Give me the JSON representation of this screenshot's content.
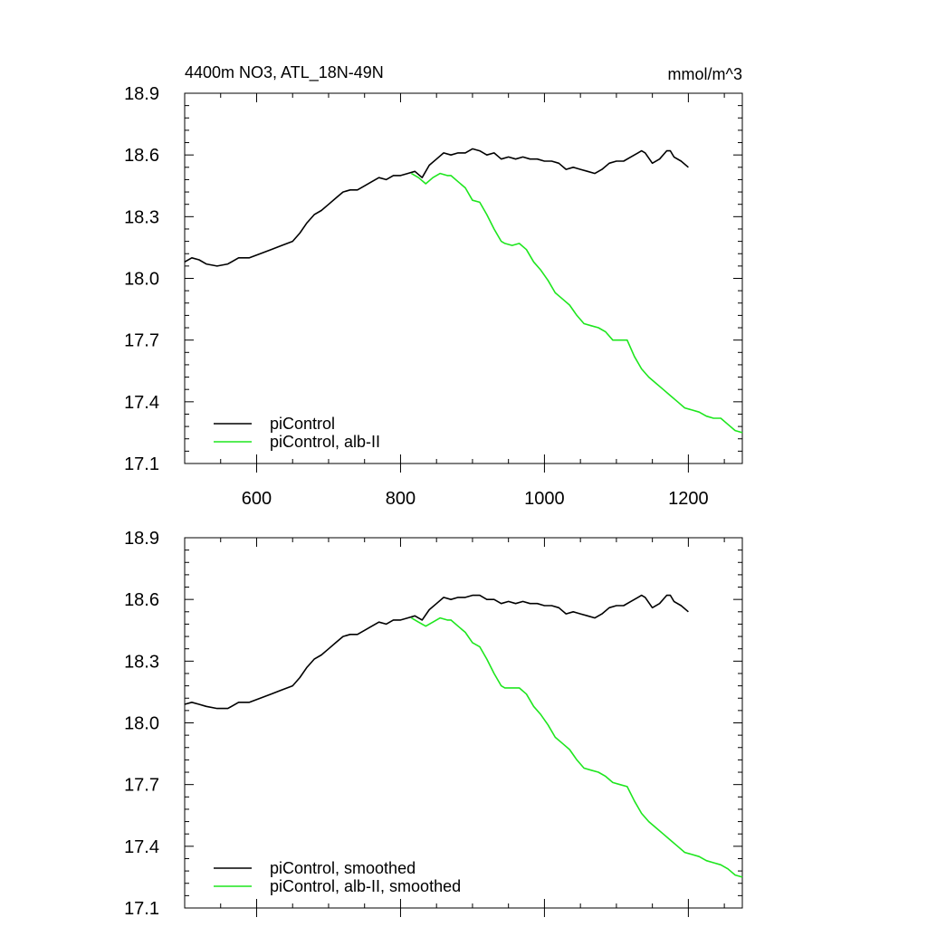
{
  "title": "4400m NO3, ATL_18N-49N",
  "units": "mmol/m^3",
  "colors": {
    "control": "#000000",
    "experiment": "#1ee61e"
  },
  "chart_data": [
    {
      "type": "line",
      "xlim": [
        500,
        1275
      ],
      "ylim": [
        17.1,
        18.9
      ],
      "xticks": [
        600,
        800,
        1000,
        1200
      ],
      "yticks": [
        17.1,
        17.4,
        17.7,
        18.0,
        18.3,
        18.6,
        18.9
      ],
      "ytick_labels": [
        "17.1",
        "17.4",
        "17.7",
        "18.0",
        "18.3",
        "18.6",
        "18.9"
      ],
      "xtick_labels": [
        "600",
        "800",
        "1000",
        "1200"
      ],
      "legend": [
        "piControl",
        "piControl, alb-II"
      ],
      "series": [
        {
          "name": "piControl",
          "x": [
            500,
            510,
            520,
            530,
            545,
            560,
            575,
            590,
            605,
            620,
            635,
            650,
            660,
            670,
            680,
            690,
            700,
            710,
            720,
            730,
            740,
            750,
            760,
            770,
            780,
            790,
            800,
            810,
            820,
            830,
            840,
            850,
            860,
            870,
            880,
            890,
            900,
            910,
            920,
            930,
            940,
            950,
            960,
            970,
            980,
            990,
            1000,
            1010,
            1020,
            1030,
            1040,
            1050,
            1060,
            1070,
            1080,
            1090,
            1100,
            1110,
            1120,
            1130,
            1135,
            1140,
            1150,
            1160,
            1170,
            1175,
            1180,
            1190,
            1200
          ],
          "values": [
            18.08,
            18.1,
            18.09,
            18.07,
            18.06,
            18.07,
            18.1,
            18.1,
            18.12,
            18.14,
            18.16,
            18.18,
            18.22,
            18.27,
            18.31,
            18.33,
            18.36,
            18.39,
            18.42,
            18.43,
            18.43,
            18.45,
            18.47,
            18.49,
            18.48,
            18.5,
            18.5,
            18.51,
            18.52,
            18.49,
            18.55,
            18.58,
            18.61,
            18.6,
            18.61,
            18.61,
            18.63,
            18.62,
            18.6,
            18.61,
            18.58,
            18.59,
            18.58,
            18.59,
            18.58,
            18.58,
            18.57,
            18.57,
            18.56,
            18.53,
            18.54,
            18.53,
            18.52,
            18.51,
            18.53,
            18.56,
            18.57,
            18.57,
            18.59,
            18.61,
            18.62,
            18.61,
            18.56,
            18.58,
            18.62,
            18.62,
            18.59,
            18.57,
            18.54
          ]
        },
        {
          "name": "piControl, alb-II",
          "x": [
            815,
            825,
            835,
            845,
            855,
            865,
            870,
            880,
            890,
            900,
            910,
            920,
            930,
            940,
            945,
            955,
            965,
            975,
            985,
            995,
            1005,
            1015,
            1025,
            1035,
            1045,
            1055,
            1065,
            1075,
            1085,
            1095,
            1105,
            1115,
            1125,
            1135,
            1145,
            1155,
            1165,
            1175,
            1185,
            1195,
            1205,
            1215,
            1225,
            1235,
            1245,
            1255,
            1265,
            1275
          ],
          "values": [
            18.51,
            18.49,
            18.46,
            18.49,
            18.51,
            18.5,
            18.5,
            18.47,
            18.44,
            18.38,
            18.37,
            18.31,
            18.24,
            18.18,
            18.17,
            18.16,
            18.17,
            18.14,
            18.08,
            18.04,
            17.99,
            17.93,
            17.9,
            17.87,
            17.82,
            17.78,
            17.77,
            17.76,
            17.74,
            17.7,
            17.7,
            17.7,
            17.62,
            17.56,
            17.52,
            17.49,
            17.46,
            17.43,
            17.4,
            17.37,
            17.36,
            17.35,
            17.33,
            17.32,
            17.32,
            17.29,
            17.26,
            17.25
          ]
        }
      ]
    },
    {
      "type": "line",
      "xlim": [
        500,
        1275
      ],
      "ylim": [
        17.1,
        18.9
      ],
      "xticks": [
        600,
        800,
        1000,
        1200
      ],
      "yticks": [
        17.1,
        17.4,
        17.7,
        18.0,
        18.3,
        18.6,
        18.9
      ],
      "ytick_labels": [
        "17.1",
        "17.4",
        "17.7",
        "18.0",
        "18.3",
        "18.6",
        "18.9"
      ],
      "legend": [
        "piControl, smoothed",
        "piControl, alb-II, smoothed"
      ],
      "series": [
        {
          "name": "piControl, smoothed",
          "x": [
            500,
            510,
            520,
            530,
            545,
            560,
            575,
            590,
            605,
            620,
            635,
            650,
            660,
            670,
            680,
            690,
            700,
            710,
            720,
            730,
            740,
            750,
            760,
            770,
            780,
            790,
            800,
            810,
            820,
            830,
            840,
            850,
            860,
            870,
            880,
            890,
            900,
            910,
            920,
            930,
            940,
            950,
            960,
            970,
            980,
            990,
            1000,
            1010,
            1020,
            1030,
            1040,
            1050,
            1060,
            1070,
            1080,
            1090,
            1100,
            1110,
            1120,
            1130,
            1135,
            1140,
            1150,
            1160,
            1170,
            1175,
            1180,
            1190,
            1200
          ],
          "values": [
            18.09,
            18.1,
            18.09,
            18.08,
            18.07,
            18.07,
            18.1,
            18.1,
            18.12,
            18.14,
            18.16,
            18.18,
            18.22,
            18.27,
            18.31,
            18.33,
            18.36,
            18.39,
            18.42,
            18.43,
            18.43,
            18.45,
            18.47,
            18.49,
            18.48,
            18.5,
            18.5,
            18.51,
            18.52,
            18.5,
            18.55,
            18.58,
            18.61,
            18.6,
            18.61,
            18.61,
            18.62,
            18.62,
            18.6,
            18.6,
            18.58,
            18.59,
            18.58,
            18.59,
            18.58,
            18.58,
            18.57,
            18.57,
            18.56,
            18.53,
            18.54,
            18.53,
            18.52,
            18.51,
            18.53,
            18.56,
            18.57,
            18.57,
            18.59,
            18.61,
            18.62,
            18.61,
            18.56,
            18.58,
            18.62,
            18.62,
            18.59,
            18.57,
            18.54
          ]
        },
        {
          "name": "piControl, alb-II, smoothed",
          "x": [
            815,
            825,
            835,
            845,
            855,
            865,
            870,
            880,
            890,
            900,
            910,
            920,
            930,
            940,
            945,
            955,
            965,
            975,
            985,
            995,
            1005,
            1015,
            1025,
            1035,
            1045,
            1055,
            1065,
            1075,
            1085,
            1095,
            1105,
            1115,
            1125,
            1135,
            1145,
            1155,
            1165,
            1175,
            1185,
            1195,
            1205,
            1215,
            1225,
            1235,
            1245,
            1255,
            1265,
            1275
          ],
          "values": [
            18.51,
            18.49,
            18.47,
            18.49,
            18.51,
            18.5,
            18.5,
            18.47,
            18.44,
            18.39,
            18.37,
            18.31,
            18.24,
            18.18,
            18.17,
            18.17,
            18.17,
            18.14,
            18.08,
            18.04,
            17.99,
            17.93,
            17.9,
            17.87,
            17.82,
            17.78,
            17.77,
            17.76,
            17.74,
            17.71,
            17.7,
            17.69,
            17.62,
            17.56,
            17.52,
            17.49,
            17.46,
            17.43,
            17.4,
            17.37,
            17.36,
            17.35,
            17.33,
            17.32,
            17.31,
            17.29,
            17.26,
            17.25
          ]
        }
      ]
    }
  ]
}
